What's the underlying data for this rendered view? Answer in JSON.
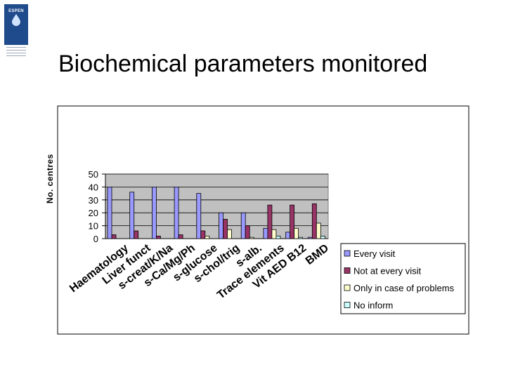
{
  "logo": {
    "word": "ESPEN"
  },
  "title": "Biochemical parameters monitored",
  "chart_data": {
    "type": "bar",
    "ylabel": "No. centres",
    "ylim": [
      0,
      50
    ],
    "yticks": [
      0,
      10,
      20,
      30,
      40,
      50
    ],
    "grid": true,
    "legend_position": "right",
    "categories": [
      "Haematology",
      "Liver funct",
      "s-creat/K/Na",
      "s-Ca/Mg/Ph",
      "s-glucose",
      "s-chol/trig",
      "s-alb.",
      "Trace elements",
      "Vit AED B12",
      "BMD"
    ],
    "series": [
      {
        "name": "Every visit",
        "color": "#9999ff",
        "values": [
          40,
          36,
          40,
          40,
          35,
          20,
          20,
          8,
          5,
          1
        ]
      },
      {
        "name": "Not at every visit",
        "color": "#993366",
        "values": [
          3,
          6,
          2,
          3,
          6,
          15,
          10,
          26,
          26,
          27
        ]
      },
      {
        "name": "Only in case of problems",
        "color": "#ffffcc",
        "values": [
          0,
          0,
          0,
          0,
          2,
          7,
          1,
          7,
          8,
          12
        ]
      },
      {
        "name": "No inform",
        "color": "#ccffff",
        "values": [
          0,
          0,
          0,
          0,
          0,
          0,
          0,
          2,
          1,
          2
        ]
      }
    ]
  }
}
